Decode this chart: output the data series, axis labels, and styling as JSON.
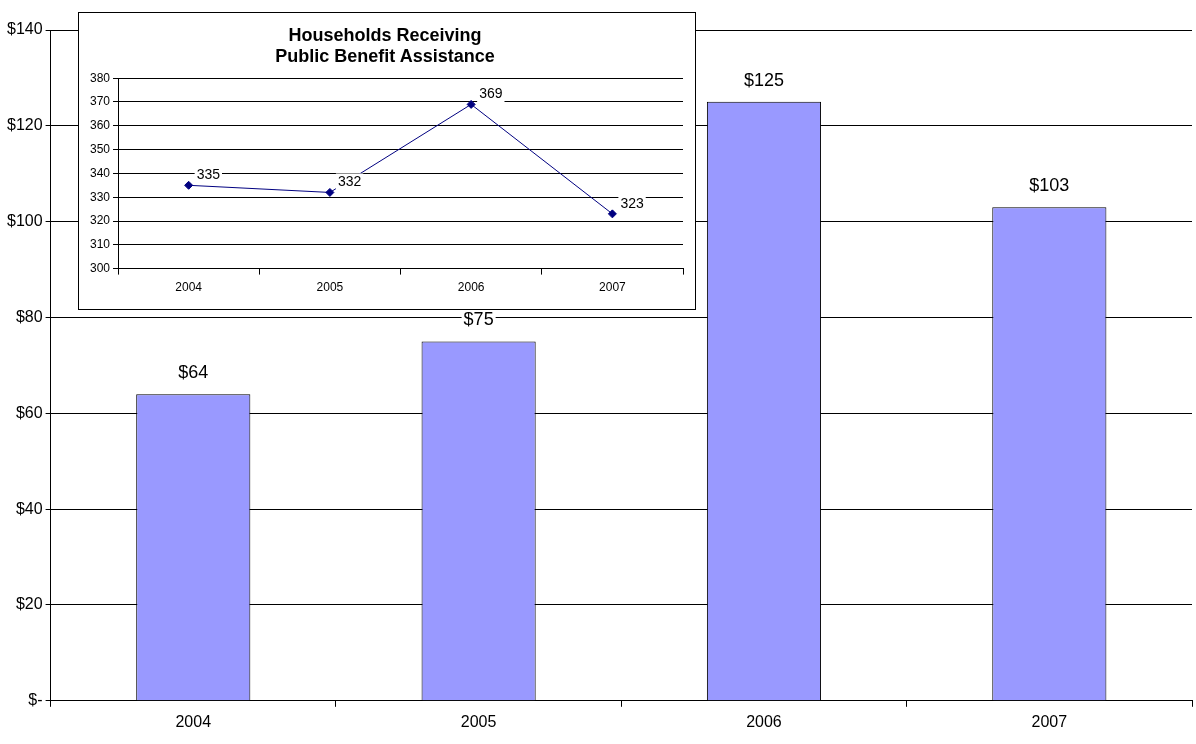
{
  "chart_data": [
    {
      "type": "bar",
      "categories": [
        "2004",
        "2005",
        "2006",
        "2007"
      ],
      "values": [
        64,
        75,
        125,
        103
      ],
      "color": "#9999ff",
      "value_labels": [
        "$64",
        "$75",
        "$125",
        "$103"
      ],
      "ylim": [
        0,
        140
      ],
      "yticks": [
        {
          "value": 0,
          "label": "$-"
        },
        {
          "value": 20,
          "label": "$20"
        },
        {
          "value": 40,
          "label": "$40"
        },
        {
          "value": 60,
          "label": "$60"
        },
        {
          "value": 80,
          "label": "$80"
        },
        {
          "value": 100,
          "label": "$100"
        },
        {
          "value": 120,
          "label": "$120"
        },
        {
          "value": 140,
          "label": "$140"
        }
      ],
      "grid": "y",
      "legend": false
    },
    {
      "type": "line",
      "title": "Households Receiving\nPublic Benefit Assistance",
      "categories": [
        "2004",
        "2005",
        "2006",
        "2007"
      ],
      "values": [
        335,
        332,
        369,
        323
      ],
      "color": "#000080",
      "marker": "diamond",
      "data_labels": true,
      "ylim": [
        300,
        380
      ],
      "yticks": [
        300,
        310,
        320,
        330,
        340,
        350,
        360,
        370,
        380
      ],
      "grid": "y",
      "legend": false
    }
  ]
}
